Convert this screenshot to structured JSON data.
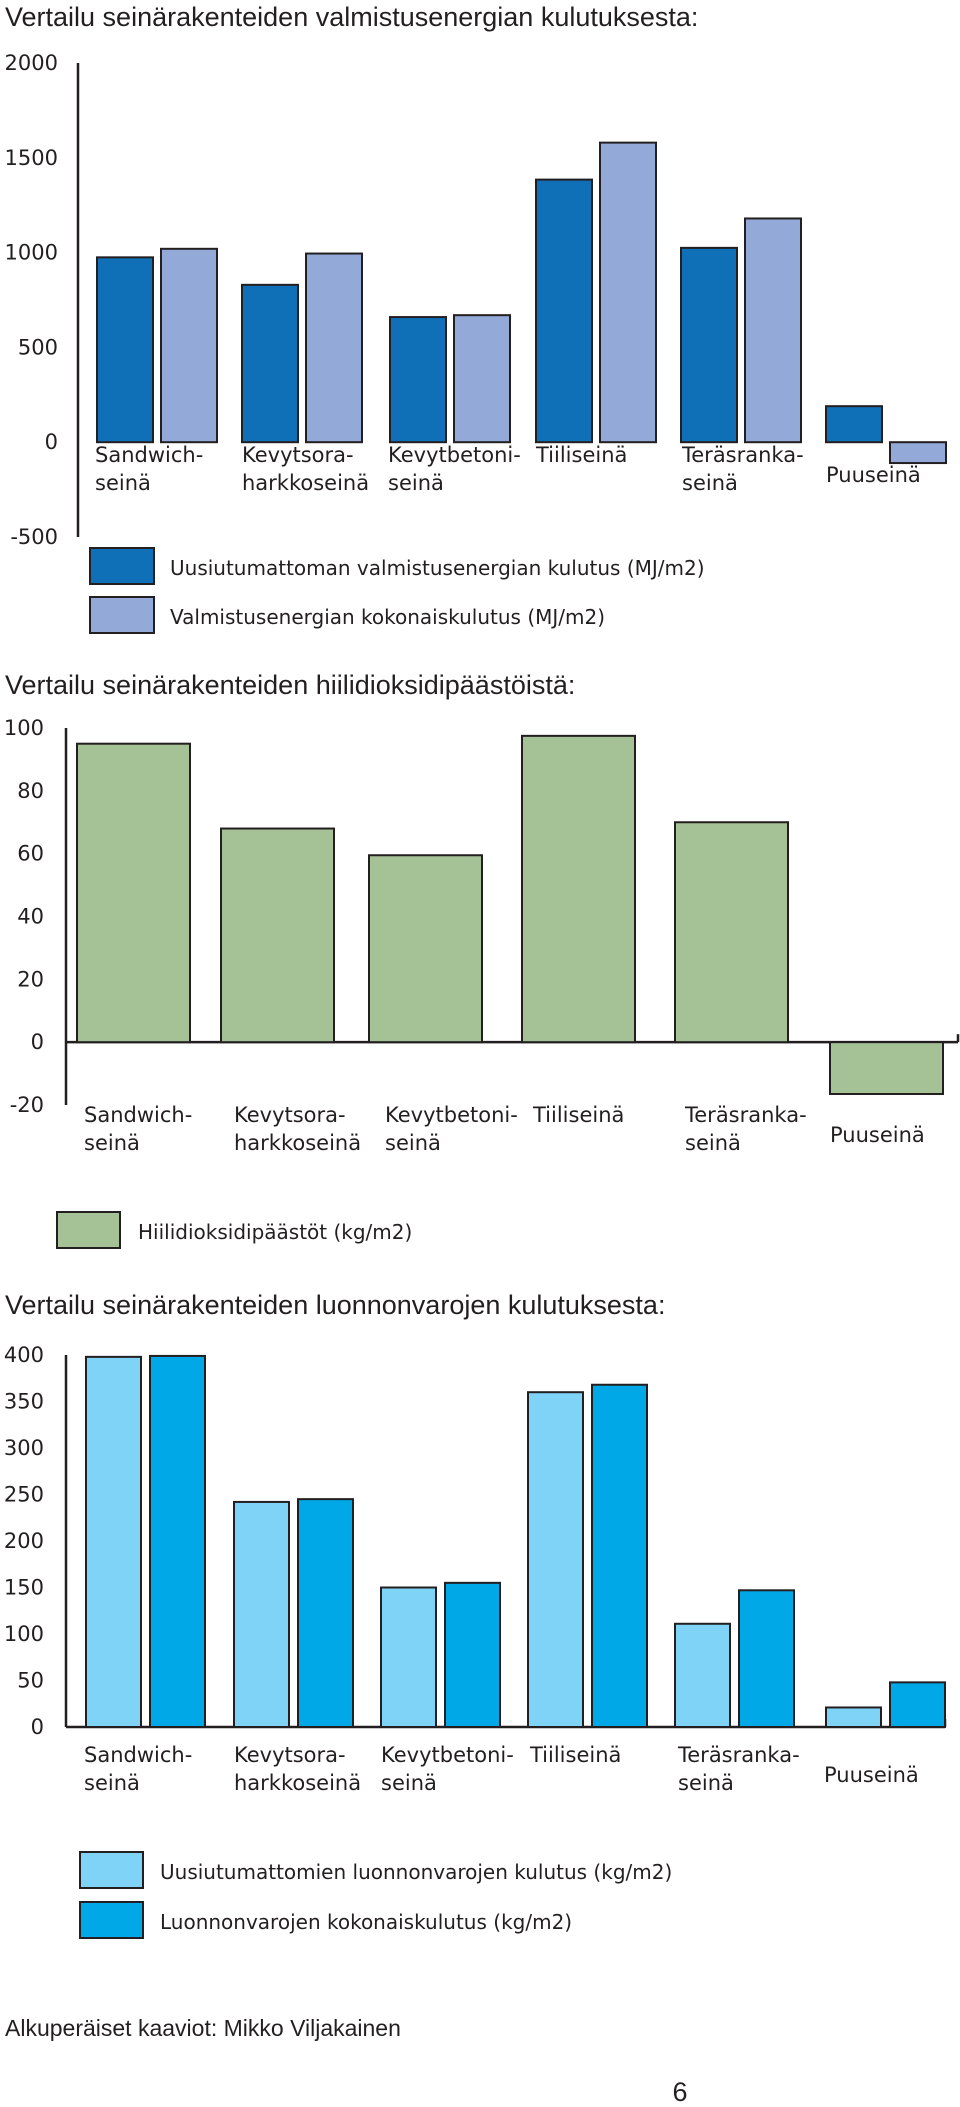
{
  "chart_data": [
    {
      "type": "bar",
      "title": "Vertailu seinärakenteiden valmistusenergian kulutuksesta:",
      "categories": [
        [
          "Sandwich-",
          "seinä"
        ],
        [
          "Kevytsora-",
          "harkkoseinä"
        ],
        [
          "Kevytbetoni-",
          "seinä"
        ],
        [
          "Tiiliseinä"
        ],
        [
          "Teräsranka-",
          "seinä"
        ],
        [
          "Puuseinä"
        ]
      ],
      "ylim": [
        -500,
        2000
      ],
      "yticks": [
        2000,
        1500,
        1000,
        500,
        0,
        -500
      ],
      "series": [
        {
          "name": "Uusiutumattoman valmistusenergian kulutus (MJ/m2)",
          "color": "#0f70b7",
          "values": [
            975,
            830,
            660,
            1385,
            1025,
            190
          ]
        },
        {
          "name": "Valmistusenergian kokonaiskulutus (MJ/m2)",
          "color": "#93a9d7",
          "values": [
            1020,
            995,
            670,
            1580,
            1180,
            -110
          ]
        }
      ],
      "legend_position": "bottom"
    },
    {
      "type": "bar",
      "title": "Vertailu seinärakenteiden hiilidioksidipäästöistä:",
      "categories": [
        [
          "Sandwich-",
          "seinä"
        ],
        [
          "Kevytsora-",
          "harkkoseinä"
        ],
        [
          "Kevytbetoni-",
          "seinä"
        ],
        [
          "Tiiliseinä"
        ],
        [
          "Teräsranka-",
          "seinä"
        ],
        [
          "Puuseinä"
        ]
      ],
      "ylim": [
        -20,
        100
      ],
      "yticks": [
        100,
        80,
        60,
        40,
        20,
        0,
        -20
      ],
      "series": [
        {
          "name": "Hiilidioksidipäästöt (kg/m2)",
          "color": "#a5c196",
          "values": [
            95,
            68,
            59.5,
            97.5,
            70,
            -16.5
          ]
        }
      ],
      "legend_position": "bottom"
    },
    {
      "type": "bar",
      "title": "Vertailu seinärakenteiden luonnonvarojen kulutuksesta:",
      "categories": [
        [
          "Sandwich-",
          "seinä"
        ],
        [
          "Kevytsora-",
          "harkkoseinä"
        ],
        [
          "Kevytbetoni-",
          "seinä"
        ],
        [
          "Tiiliseinä"
        ],
        [
          "Teräsranka-",
          "seinä"
        ],
        [
          "Puuseinä"
        ]
      ],
      "ylim": [
        0,
        400
      ],
      "yticks": [
        400,
        350,
        300,
        250,
        200,
        150,
        100,
        50,
        0
      ],
      "series": [
        {
          "name": "Uusiutumattomien luonnonvarojen kulutus (kg/m2)",
          "color": "#7fd3f7",
          "values": [
            398,
            242,
            150,
            360,
            111,
            21
          ]
        },
        {
          "name": "Luonnonvarojen kokonaiskulutus (kg/m2)",
          "color": "#00a8e8",
          "values": [
            399,
            245,
            155,
            368,
            147,
            48
          ]
        }
      ],
      "legend_position": "bottom"
    }
  ],
  "footer": "Alkuperäiset kaaviot: Mikko Viljakainen",
  "page_number": "6"
}
